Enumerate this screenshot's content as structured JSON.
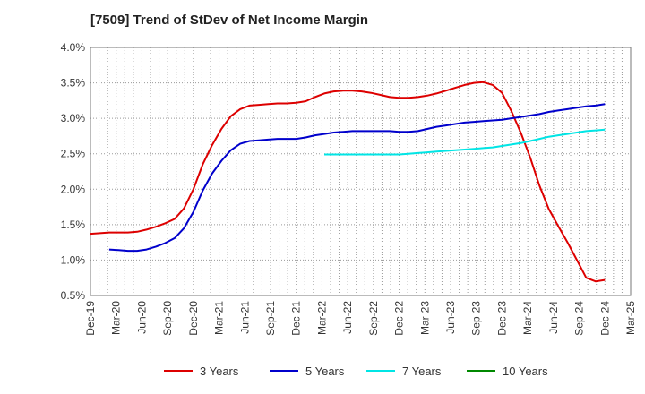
{
  "chart_data": {
    "type": "line",
    "title": "[7509]  Trend of StDev of Net Income Margin",
    "xlabel": "",
    "ylabel": "",
    "x_tick_labels": [
      "Dec-19",
      "Mar-20",
      "Jun-20",
      "Sep-20",
      "Dec-20",
      "Mar-21",
      "Jun-21",
      "Sep-21",
      "Dec-21",
      "Mar-22",
      "Jun-22",
      "Sep-22",
      "Dec-22",
      "Mar-23",
      "Jun-23",
      "Sep-23",
      "Dec-23",
      "Mar-24",
      "Jun-24",
      "Sep-24",
      "Dec-24",
      "Mar-25"
    ],
    "y_tick_labels": [
      "0.5%",
      "1.0%",
      "1.5%",
      "2.0%",
      "2.5%",
      "3.0%",
      "3.5%",
      "4.0%"
    ],
    "ylim": [
      0.5,
      4.0
    ],
    "grid": true,
    "legend_position": "bottom",
    "series": [
      {
        "name": "3 Years",
        "color": "#dd0000",
        "values": [
          1.37,
          1.38,
          1.39,
          1.39,
          1.39,
          1.4,
          1.43,
          1.47,
          1.52,
          1.58,
          1.73,
          2.0,
          2.35,
          2.62,
          2.85,
          3.03,
          3.13,
          3.18,
          3.19,
          3.2,
          3.21,
          3.21,
          3.22,
          3.24,
          3.3,
          3.35,
          3.38,
          3.39,
          3.39,
          3.38,
          3.36,
          3.33,
          3.3,
          3.29,
          3.29,
          3.3,
          3.32,
          3.35,
          3.39,
          3.43,
          3.47,
          3.5,
          3.51,
          3.47,
          3.36,
          3.1,
          2.8,
          2.45,
          2.05,
          1.72,
          1.48,
          1.25,
          1.0,
          0.75,
          0.7,
          0.72
        ]
      },
      {
        "name": "5 Years",
        "color": "#0000cc",
        "values": [
          null,
          null,
          1.15,
          1.14,
          1.13,
          1.13,
          1.15,
          1.19,
          1.24,
          1.31,
          1.45,
          1.68,
          1.98,
          2.22,
          2.4,
          2.55,
          2.64,
          2.68,
          2.69,
          2.7,
          2.71,
          2.71,
          2.71,
          2.73,
          2.76,
          2.78,
          2.8,
          2.81,
          2.82,
          2.82,
          2.82,
          2.82,
          2.82,
          2.81,
          2.81,
          2.82,
          2.85,
          2.88,
          2.9,
          2.92,
          2.94,
          2.95,
          2.96,
          2.97,
          2.98,
          3.0,
          3.02,
          3.04,
          3.06,
          3.09,
          3.11,
          3.13,
          3.15,
          3.17,
          3.18,
          3.2
        ]
      },
      {
        "name": "7 Years",
        "color": "#00e5e5",
        "values": [
          null,
          null,
          null,
          null,
          null,
          null,
          null,
          null,
          null,
          null,
          null,
          null,
          null,
          null,
          null,
          null,
          null,
          null,
          null,
          null,
          null,
          null,
          null,
          null,
          null,
          2.49,
          2.49,
          2.49,
          2.49,
          2.49,
          2.49,
          2.49,
          2.49,
          2.49,
          2.5,
          2.51,
          2.52,
          2.53,
          2.54,
          2.55,
          2.56,
          2.57,
          2.58,
          2.59,
          2.61,
          2.63,
          2.65,
          2.68,
          2.71,
          2.74,
          2.76,
          2.78,
          2.8,
          2.82,
          2.83,
          2.84
        ]
      },
      {
        "name": "10 Years",
        "color": "#008800",
        "values": []
      }
    ]
  }
}
